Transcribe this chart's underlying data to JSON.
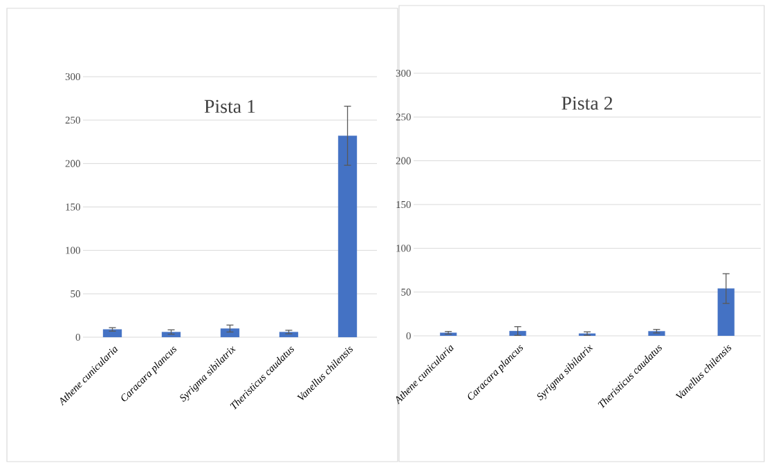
{
  "chart_data": [
    {
      "type": "bar",
      "title": "Pista 1",
      "categories": [
        "*Athene cunicularia*",
        "*Caracara plancus*",
        "*Syrigma sibilatrix*",
        "*Theristicus caudatus*",
        "*Vanellus chilensis*"
      ],
      "values": [
        9,
        6,
        10,
        6,
        232
      ],
      "errors": [
        2,
        2.5,
        4,
        2,
        34
      ],
      "color": "#4472c4",
      "ylim": [
        0,
        300
      ],
      "yticks": [
        0,
        50,
        100,
        150,
        200,
        250,
        300
      ],
      "grid": "y"
    },
    {
      "type": "bar",
      "title": "Pista 2",
      "categories": [
        "*Athene cunicularia*",
        "*Caracara plancus*",
        "*Syrigma sibilatrix*",
        "*Theristicus caudatus*",
        "*Vanellus chilensis*"
      ],
      "values": [
        3.5,
        5.5,
        2.6,
        5.3,
        54
      ],
      "errors": [
        1.5,
        5,
        2,
        2,
        17
      ],
      "color": "#4472c4",
      "ylim": [
        0,
        300
      ],
      "yticks": [
        0,
        50,
        100,
        150,
        200,
        250,
        300
      ],
      "grid": "y"
    }
  ]
}
